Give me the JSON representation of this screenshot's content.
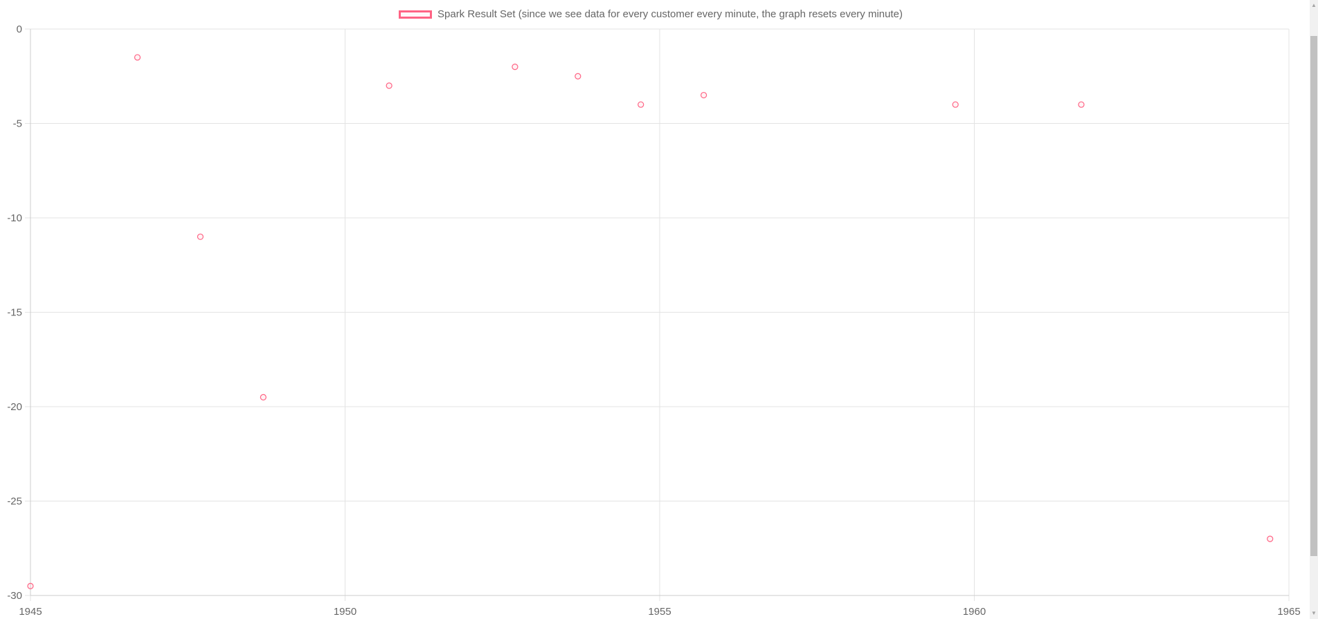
{
  "chart_data": {
    "type": "scatter",
    "legend": {
      "label": "Spark Result Set (since we see data for every customer every minute, the graph resets every minute)",
      "placement": "top-center"
    },
    "series": [
      {
        "name": "Spark Result Set (since we see data for every customer every minute, the graph resets every minute)",
        "color": "#ff6384",
        "points": [
          {
            "x": 1945.0,
            "y": -29.5
          },
          {
            "x": 1946.7,
            "y": -1.5
          },
          {
            "x": 1947.7,
            "y": -11
          },
          {
            "x": 1948.7,
            "y": -19.5
          },
          {
            "x": 1950.7,
            "y": -3
          },
          {
            "x": 1952.7,
            "y": -2
          },
          {
            "x": 1953.7,
            "y": -2.5
          },
          {
            "x": 1954.7,
            "y": -4
          },
          {
            "x": 1955.7,
            "y": -3.5
          },
          {
            "x": 1959.7,
            "y": -4
          },
          {
            "x": 1961.7,
            "y": -4
          },
          {
            "x": 1964.7,
            "y": -27
          }
        ]
      }
    ],
    "xlim": [
      1945,
      1965
    ],
    "ylim": [
      -30,
      0
    ],
    "x_ticks": [
      "1945",
      "1950",
      "1955",
      "1960",
      "1965"
    ],
    "y_ticks": [
      "0",
      "-5",
      "-10",
      "-15",
      "-20",
      "-25",
      "-30"
    ],
    "grid": true
  },
  "scrollbar": {
    "up_icon": "triangle-up",
    "down_icon": "triangle-down"
  }
}
